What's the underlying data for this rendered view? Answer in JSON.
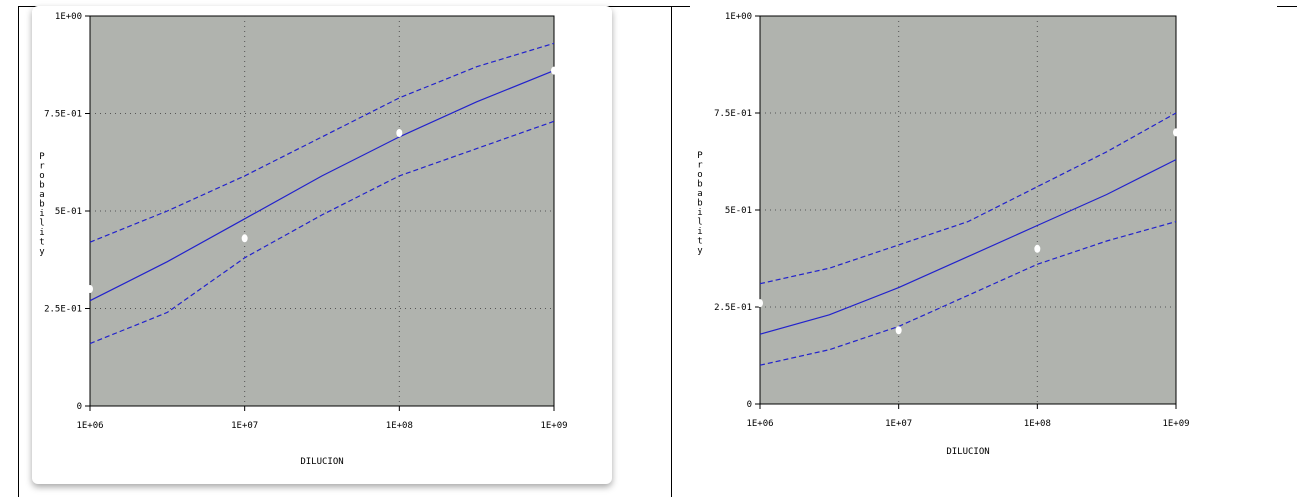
{
  "chart_data": [
    {
      "type": "line",
      "xscale": "log",
      "x_ticks": [
        "1E+06",
        "1E+07",
        "1E+08",
        "1E+09"
      ],
      "y_ticks": [
        "0",
        "2.5E-01",
        "5E-01",
        "7.5E-01",
        "1E+00"
      ],
      "xlabel": "DILUCION",
      "ylabel": "Probability",
      "xlim": [
        1000000,
        1000000000
      ],
      "ylim": [
        0,
        1
      ],
      "grid": true,
      "plot_background": "#b0b3ae",
      "line_color": "#2222cc",
      "point_color": "#ffffff",
      "series": [
        {
          "style": "solid",
          "x": [
            1000000,
            3162278,
            10000000,
            31622777,
            100000000,
            316227766,
            1000000000
          ],
          "y": [
            0.27,
            0.37,
            0.48,
            0.59,
            0.69,
            0.78,
            0.86
          ]
        },
        {
          "style": "dashed",
          "x": [
            1000000,
            3162278,
            10000000,
            31622777,
            100000000,
            316227766,
            1000000000
          ],
          "y": [
            0.42,
            0.5,
            0.59,
            0.69,
            0.79,
            0.87,
            0.93
          ]
        },
        {
          "style": "dashed",
          "x": [
            1000000,
            3162278,
            10000000,
            31622777,
            100000000,
            316227766,
            1000000000
          ],
          "y": [
            0.16,
            0.24,
            0.38,
            0.49,
            0.59,
            0.66,
            0.73
          ]
        }
      ],
      "points": {
        "x": [
          1000000,
          10000000,
          100000000,
          1000000000
        ],
        "y": [
          0.3,
          0.43,
          0.7,
          0.86
        ]
      }
    },
    {
      "type": "line",
      "xscale": "log",
      "x_ticks": [
        "1E+06",
        "1E+07",
        "1E+08",
        "1E+09"
      ],
      "y_ticks": [
        "0",
        "2.5E-01",
        "5E-01",
        "7.5E-01",
        "1E+00"
      ],
      "xlabel": "DILUCION",
      "ylabel": "Probability",
      "xlim": [
        1000000,
        1000000000
      ],
      "ylim": [
        0,
        1
      ],
      "grid": true,
      "plot_background": "#b0b3ae",
      "line_color": "#2222cc",
      "point_color": "#ffffff",
      "series": [
        {
          "style": "solid",
          "x": [
            1000000,
            3162278,
            10000000,
            31622777,
            100000000,
            316227766,
            1000000000
          ],
          "y": [
            0.18,
            0.23,
            0.3,
            0.38,
            0.46,
            0.54,
            0.63
          ]
        },
        {
          "style": "dashed",
          "x": [
            1000000,
            3162278,
            10000000,
            31622777,
            100000000,
            316227766,
            1000000000
          ],
          "y": [
            0.31,
            0.35,
            0.41,
            0.47,
            0.56,
            0.65,
            0.75
          ]
        },
        {
          "style": "dashed",
          "x": [
            1000000,
            3162278,
            10000000,
            31622777,
            100000000,
            316227766,
            1000000000
          ],
          "y": [
            0.1,
            0.14,
            0.2,
            0.28,
            0.36,
            0.42,
            0.47
          ]
        }
      ],
      "points": {
        "x": [
          1000000,
          10000000,
          100000000,
          1000000000
        ],
        "y": [
          0.26,
          0.19,
          0.4,
          0.7
        ]
      }
    }
  ]
}
